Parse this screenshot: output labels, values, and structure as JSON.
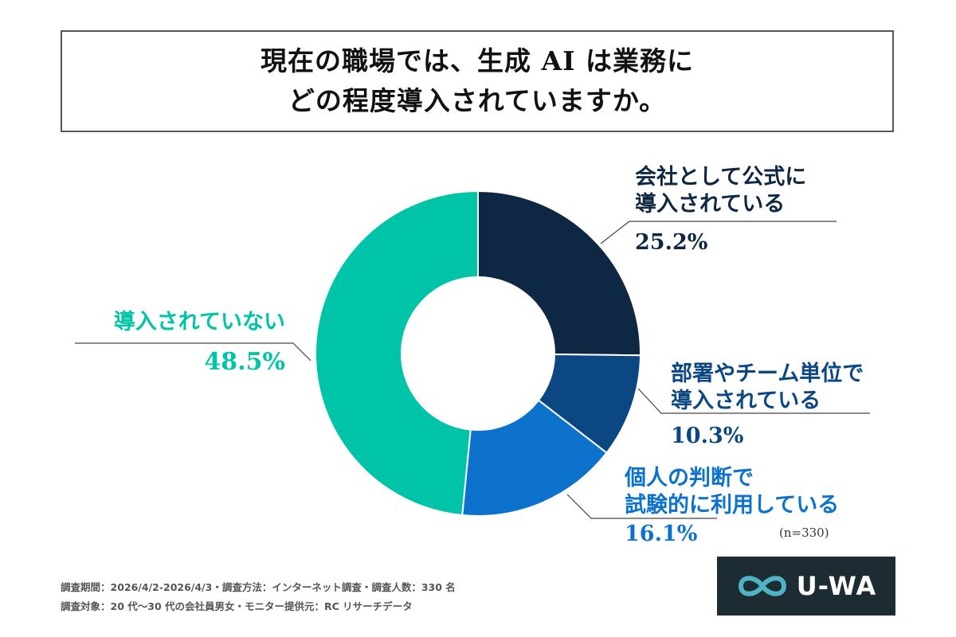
{
  "title": {
    "line1": "現在の職場では、生成 AI は業務に",
    "line2": "どの程度導入されていますか。"
  },
  "chart_data": {
    "type": "pie",
    "slices": [
      {
        "name_line1": "会社として公式に",
        "name_line2": "導入されている",
        "value": 25.2,
        "label": "25.2%",
        "color": "#0e2742"
      },
      {
        "name_line1": "部署やチーム単位で",
        "name_line2": "導入されている",
        "value": 10.3,
        "label": "10.3%",
        "color": "#0b4783"
      },
      {
        "name_line1": "個人の判断で",
        "name_line2": "試験的に利用している",
        "value": 16.1,
        "label": "16.1%",
        "color": "#0d72cc"
      },
      {
        "name_line1": "導入されていない",
        "name_line2": "",
        "value": 48.5,
        "label": "48.5%",
        "color": "#00c4a7"
      }
    ],
    "label_colors": [
      "#0e2742",
      "#0b4783",
      "#0d72cc",
      "#00c4a7"
    ]
  },
  "sample_size": "(n=330)",
  "footnotes": {
    "line1": "調査期間：2026/4/2-2026/4/3・調査方法：インターネット調査・調査人数：330 名",
    "line2": "調査対象：20 代〜30 代の会社員男女・モニター提供元：RC リサーチデータ"
  },
  "logo": {
    "text": "U-WA",
    "icon": "infinity-icon",
    "bg_color": "#1d2b33",
    "icon_color": "#4fb3c4"
  }
}
